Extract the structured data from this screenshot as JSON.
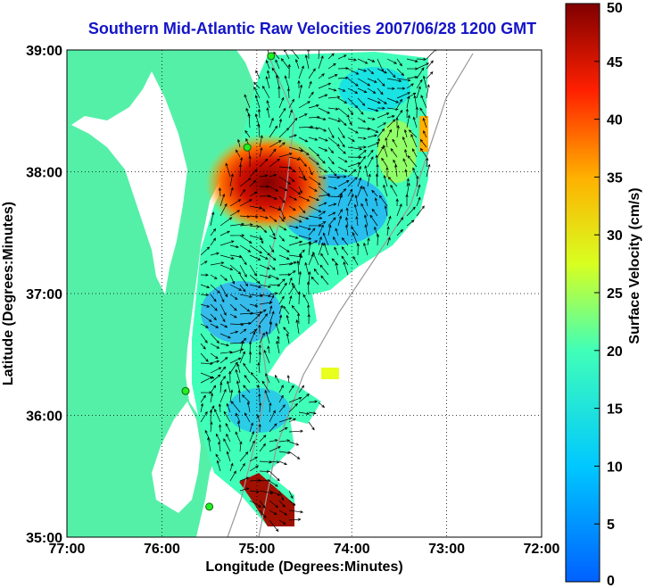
{
  "title": "Southern Mid-Atlantic Raw Velocities 2007/06/28 1200 GMT",
  "axes": {
    "xlabel": "Longitude (Degrees:Minutes)",
    "ylabel": "Latitude (Degrees:Minutes)",
    "x_ticks": [
      "77:00",
      "76:00",
      "75:00",
      "74:00",
      "73:00",
      "72:00"
    ],
    "y_ticks": [
      "39:00",
      "38:00",
      "37:00",
      "36:00",
      "35:00"
    ],
    "xlim": [
      -77,
      -72
    ],
    "ylim": [
      35,
      39
    ],
    "grid": true
  },
  "colorbar": {
    "label": "Surface Velocity (cm/s)",
    "min": 0,
    "max": 50,
    "ticks": [
      "0",
      "5",
      "10",
      "15",
      "20",
      "25",
      "30",
      "35",
      "40",
      "45",
      "50"
    ]
  },
  "colors": {
    "land": "#55f0a8",
    "title": "#1414c8",
    "station": "#22ee22"
  },
  "stations": [
    {
      "lon": -74.85,
      "lat": 38.95
    },
    {
      "lon": -75.1,
      "lat": 38.2
    },
    {
      "lon": -75.75,
      "lat": 36.2
    },
    {
      "lon": -75.5,
      "lat": 35.25
    }
  ]
}
